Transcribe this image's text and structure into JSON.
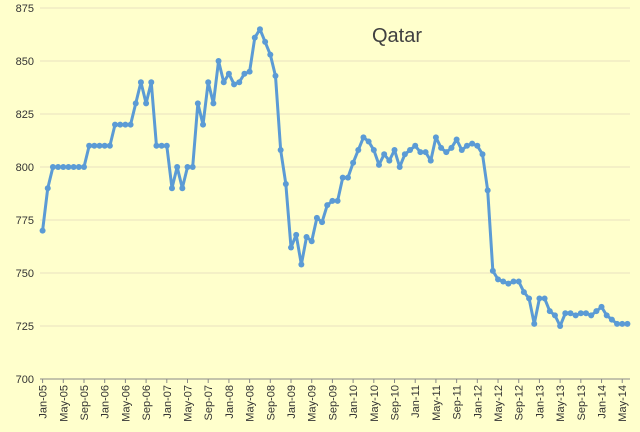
{
  "chart_data": {
    "type": "line",
    "title": "Qatar",
    "xlabel": "",
    "ylabel": "",
    "ylim": [
      700,
      875
    ],
    "yticks": [
      700,
      725,
      750,
      775,
      800,
      825,
      850,
      875
    ],
    "grid": true,
    "legend": "none",
    "colors": {
      "line": "#5B9BD5",
      "grid": "#E8E0C0",
      "axis": "#888888",
      "background": "#FFFFCC",
      "title": "#404040"
    },
    "x_tick_labels": [
      "Jan-05",
      "May-05",
      "Sep-05",
      "Jan-06",
      "May-06",
      "Sep-06",
      "Jan-07",
      "May-07",
      "Sep-07",
      "Jan-08",
      "May-08",
      "Sep-08",
      "Jan-09",
      "May-09",
      "Sep-09",
      "Jan-10",
      "May-10",
      "Sep-10",
      "Jan-11",
      "May-11",
      "Sep-11",
      "Jan-12",
      "May-12",
      "Sep-12",
      "Jan-13",
      "May-13",
      "Sep-13",
      "Jan-14",
      "May-14"
    ],
    "x_start": "2005-01",
    "series": [
      {
        "values": [
          770,
          790,
          800,
          800,
          800,
          800,
          800,
          800,
          800,
          810,
          810,
          810,
          810,
          810,
          820,
          820,
          820,
          820,
          830,
          840,
          830,
          840,
          810,
          810,
          810,
          790,
          800,
          790,
          800,
          800,
          830,
          820,
          840,
          830,
          850,
          840,
          844,
          839,
          840,
          844,
          845,
          861,
          865,
          859,
          853,
          843,
          808,
          792,
          762,
          768,
          754,
          767,
          765,
          776,
          774,
          782,
          784,
          784,
          795,
          795,
          802,
          808,
          814,
          812,
          808,
          801,
          806,
          803,
          808,
          800,
          806,
          808,
          810,
          807,
          807,
          803,
          814,
          809,
          807,
          809,
          813,
          808,
          810,
          811,
          810,
          806,
          789,
          751,
          747,
          746,
          745,
          746,
          746,
          741,
          738,
          726,
          738,
          738,
          732,
          730,
          725,
          731,
          731,
          730,
          731,
          731,
          730,
          732,
          734,
          730,
          728,
          726,
          726,
          726
        ]
      }
    ]
  }
}
